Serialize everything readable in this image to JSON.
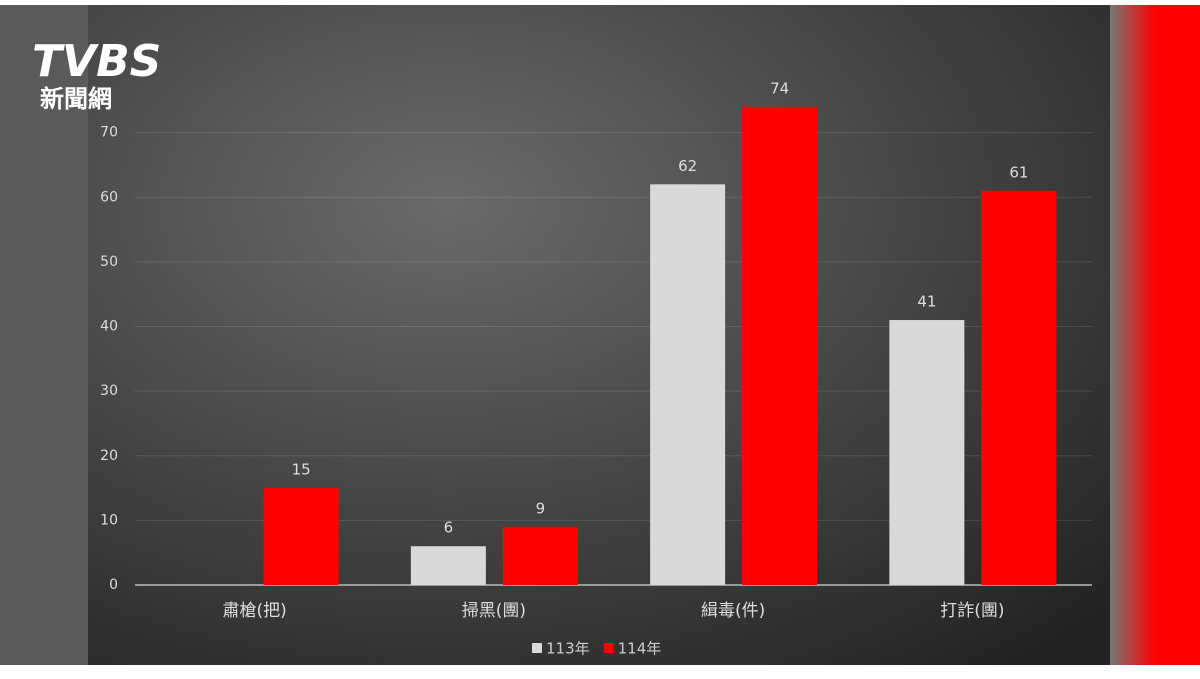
{
  "logo": {
    "brand": "TVBS",
    "sub": "新聞網"
  },
  "chart_data": {
    "type": "bar",
    "categories": [
      "肅槍(把)",
      "掃黑(團)",
      "緝毒(件)",
      "打詐(團)"
    ],
    "series": [
      {
        "name": "113年",
        "color": "#d9d9d9",
        "values": [
          null,
          6,
          62,
          41
        ]
      },
      {
        "name": "114年",
        "color": "#ff0000",
        "values": [
          15,
          9,
          74,
          61
        ]
      }
    ],
    "ylim": [
      0,
      80
    ],
    "yticks": [
      0,
      10,
      20,
      30,
      40,
      50,
      60,
      70
    ],
    "grid": true,
    "legend": "bottom"
  }
}
